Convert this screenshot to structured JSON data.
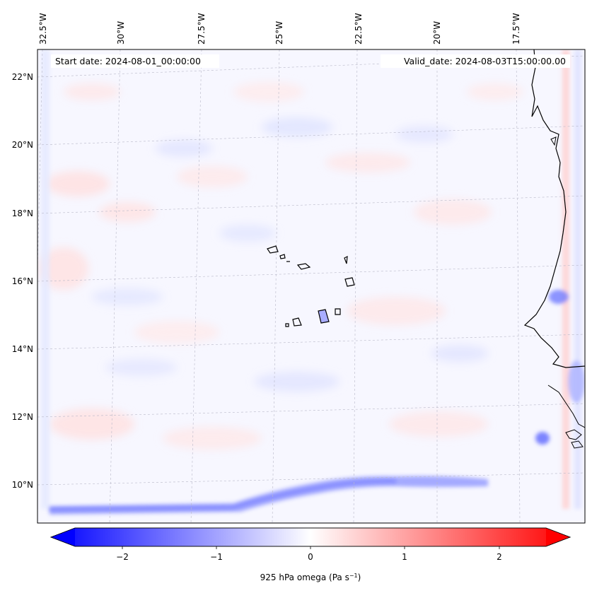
{
  "map": {
    "start_label": "Start date: 2024-08-01_00:00:00",
    "valid_label": "Valid_date: 2024-08-03T15:00:00.00",
    "colors": {
      "field_base": "#f7f7ff",
      "coast": "#000000",
      "grid": "#b0b0b0",
      "colormap": [
        "#0000ff",
        "#ffffff",
        "#ff0000"
      ]
    },
    "lon_ticks": [
      "32.5°W",
      "30°W",
      "27.5°W",
      "25°W",
      "22.5°W",
      "20°W",
      "17.5°W"
    ],
    "lat_ticks": [
      "22°N",
      "20°N",
      "18°N",
      "16°N",
      "14°N",
      "12°N",
      "10°N"
    ],
    "colorbar": {
      "label_main": "925 hPa omega (Pa s",
      "label_exp": "−1",
      "label_close": ")",
      "ticks": [
        "−2",
        "−1",
        "0",
        "1",
        "2"
      ],
      "range": [
        -2.7,
        2.7
      ],
      "extend": "both"
    }
  }
}
